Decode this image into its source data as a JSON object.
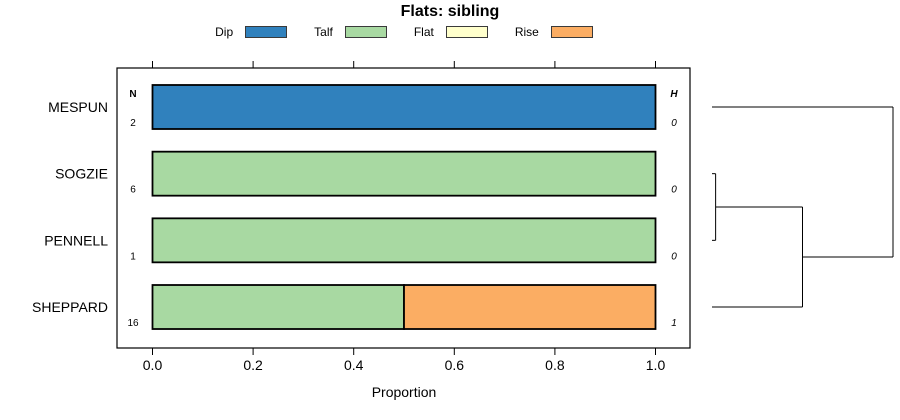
{
  "page": {
    "background": "#ffffff"
  },
  "chart_data": {
    "type": "bar",
    "orientation": "horizontal",
    "stacked": true,
    "title": "Flats: sibling",
    "xlabel": "Proportion",
    "xlim": [
      0.0,
      1.0
    ],
    "x_tick_labels": [
      "0.0",
      "0.2",
      "0.4",
      "0.6",
      "0.8",
      "1.0"
    ],
    "x_tick_values": [
      0.0,
      0.2,
      0.4,
      0.6,
      0.8,
      1.0
    ],
    "grid": false,
    "legend_position": "top",
    "legend": [
      {
        "label": "Dip",
        "color": "#3081bd"
      },
      {
        "label": "Talf",
        "color": "#a8d9a2"
      },
      {
        "label": "Flat",
        "color": "#ffffcc"
      },
      {
        "label": "Rise",
        "color": "#fbad63"
      }
    ],
    "count_column_header": "N",
    "stat_column_header": "H",
    "rows": [
      {
        "category": "MESPUN",
        "n": 2,
        "h": 0,
        "segments": [
          {
            "name": "Dip",
            "value": 1.0
          }
        ]
      },
      {
        "category": "SOGZIE",
        "n": 6,
        "h": 0,
        "segments": [
          {
            "name": "Talf",
            "value": 1.0
          }
        ]
      },
      {
        "category": "PENNELL",
        "n": 1,
        "h": 0,
        "segments": [
          {
            "name": "Talf",
            "value": 1.0
          }
        ]
      },
      {
        "category": "SHEPPARD",
        "n": 16,
        "h": 1,
        "segments": [
          {
            "name": "Talf",
            "value": 0.5
          },
          {
            "name": "Rise",
            "value": 0.5
          }
        ]
      }
    ],
    "dendrogram": {
      "orientation": "left-to-right",
      "tree": {
        "height": 1.0,
        "children": [
          {
            "leaf": "MESPUN"
          },
          {
            "height": 0.5,
            "children": [
              {
                "height": 0.02,
                "children": [
                  {
                    "leaf": "SOGZIE"
                  },
                  {
                    "leaf": "PENNELL"
                  }
                ]
              },
              {
                "leaf": "SHEPPARD"
              }
            ]
          }
        ]
      }
    }
  }
}
